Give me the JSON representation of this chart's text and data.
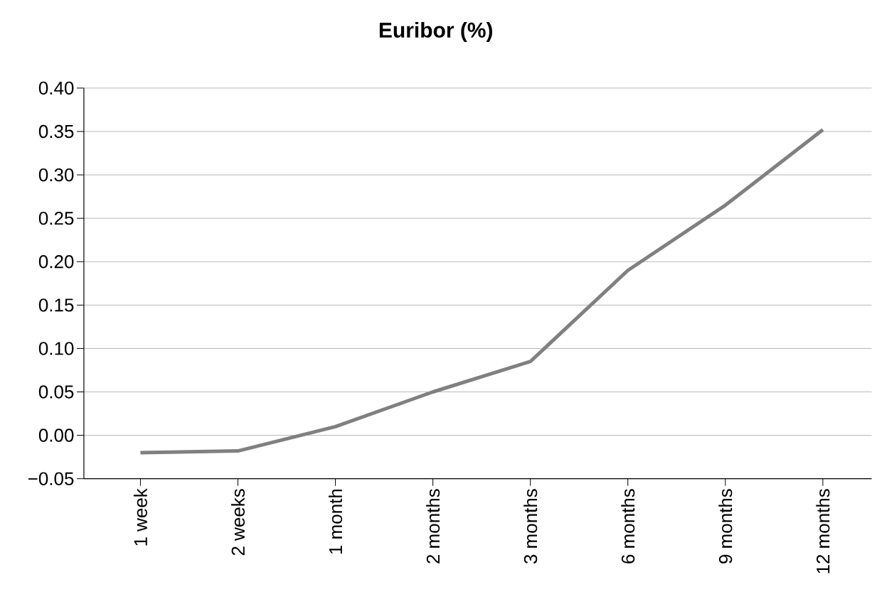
{
  "chart_data": {
    "type": "line",
    "title": "Euribor (%)",
    "categories": [
      "1 week",
      "2 weeks",
      "1 month",
      "2 months",
      "3 months",
      "6 months",
      "9 months",
      "12 months"
    ],
    "values": [
      -0.02,
      -0.018,
      0.01,
      0.05,
      0.085,
      0.19,
      0.265,
      0.352
    ],
    "color": "#808080",
    "ylim": [
      -0.05,
      0.4
    ],
    "yticks": [
      {
        "value": -0.05,
        "label": "−0.05"
      },
      {
        "value": 0,
        "label": "0.00"
      },
      {
        "value": 0.05,
        "label": "0.05"
      },
      {
        "value": 0.1,
        "label": "0.10"
      },
      {
        "value": 0.15,
        "label": "0.15"
      },
      {
        "value": 0.2,
        "label": "0.20"
      },
      {
        "value": 0.25,
        "label": "0.25"
      },
      {
        "value": 0.3,
        "label": "0.30"
      },
      {
        "value": 0.35,
        "label": "0.35"
      },
      {
        "value": 0.4,
        "label": "0.40"
      }
    ],
    "grid": "y",
    "marker": "none",
    "line_style": "solid"
  }
}
